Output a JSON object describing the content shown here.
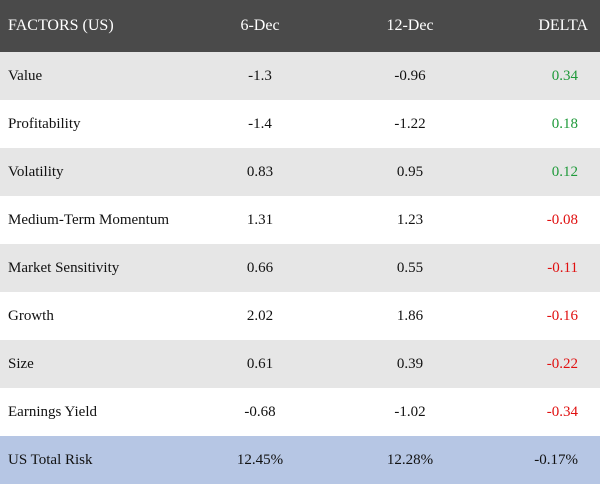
{
  "table": {
    "headers": [
      "FACTORS (US)",
      "6-Dec",
      "12-Dec",
      "DELTA"
    ],
    "rows": [
      {
        "factor": "Value",
        "dec6": "-1.3",
        "dec12": "-0.96",
        "delta": "0.34"
      },
      {
        "factor": "Profitability",
        "dec6": "-1.4",
        "dec12": "-1.22",
        "delta": "0.18"
      },
      {
        "factor": "Volatility",
        "dec6": "0.83",
        "dec12": "0.95",
        "delta": "0.12"
      },
      {
        "factor": "Medium-Term Momentum",
        "dec6": "1.31",
        "dec12": "1.23",
        "delta": "-0.08"
      },
      {
        "factor": "Market Sensitivity",
        "dec6": "0.66",
        "dec12": "0.55",
        "delta": "-0.11"
      },
      {
        "factor": "Growth",
        "dec6": "2.02",
        "dec12": "1.86",
        "delta": "-0.16"
      },
      {
        "factor": "Size",
        "dec6": "0.61",
        "dec12": "0.39",
        "delta": "-0.22"
      },
      {
        "factor": "Earnings Yield",
        "dec6": "-0.68",
        "dec12": "-1.02",
        "delta": "-0.34"
      }
    ],
    "total": {
      "factor": "US Total Risk",
      "dec6": "12.45%",
      "dec12": "12.28%",
      "delta": "-0.17%"
    }
  },
  "colors": {
    "header_bg": "#4a4a4a",
    "row_shade": "#e6e6e6",
    "total_bg": "#b6c6e4",
    "positive": "#1f9a3a",
    "negative": "#e01010"
  }
}
